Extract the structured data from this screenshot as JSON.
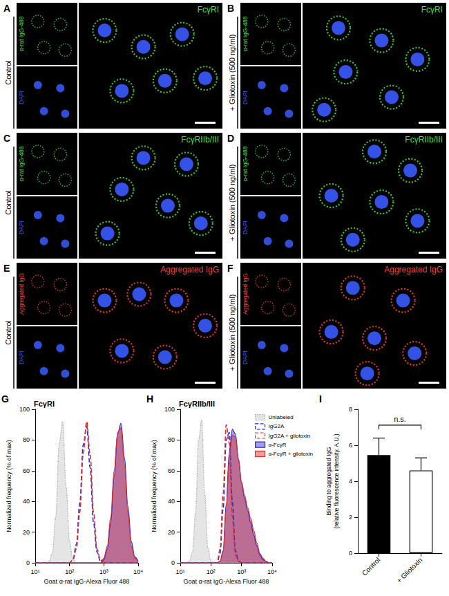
{
  "image_panels": [
    {
      "letter": "A",
      "condition": "Control",
      "stain": "FcγRI",
      "channel_label": "α-rat IgG-488",
      "nucleus_label": "DAPI",
      "color": "#3ee03e",
      "nucleus_color": "#3a5cff"
    },
    {
      "letter": "B",
      "condition": "+ Gliotoxin (500 ng/ml)",
      "stain": "FcγRI",
      "channel_label": "α-rat IgG-488",
      "nucleus_label": "DAPI",
      "color": "#3ee03e",
      "nucleus_color": "#3a5cff"
    },
    {
      "letter": "C",
      "condition": "Control",
      "stain": "FcγRIIb/III",
      "channel_label": "α-rat IgG-488",
      "nucleus_label": "DAPI",
      "color": "#3ee03e",
      "nucleus_color": "#3a5cff"
    },
    {
      "letter": "D",
      "condition": "+ Gliotoxin (500 ng/ml)",
      "stain": "FcγRIIb/III",
      "channel_label": "α-rat IgG-488",
      "nucleus_label": "DAPI",
      "color": "#3ee03e",
      "nucleus_color": "#3a5cff"
    },
    {
      "letter": "E",
      "condition": "Control",
      "stain": "Aggregated IgG",
      "channel_label": "Aggregated IgG",
      "nucleus_label": "DAPI",
      "color": "#ff3c3c",
      "nucleus_color": "#3a5cff"
    },
    {
      "letter": "F",
      "condition": "+ Gliotoxin (500 ng/ml)",
      "stain": "Aggregated IgG",
      "channel_label": "Aggregated IgG",
      "nucleus_label": "DAPI",
      "color": "#ff3c3c",
      "nucleus_color": "#3a5cff"
    }
  ],
  "chart_data": [
    {
      "type": "line",
      "panel": "G",
      "title": "FcγRI",
      "x_label": "Goat α-rat IgG-Alexa Fluor 488",
      "y_label": "Normalized frequency (% of max)",
      "x": [
        10,
        12.59,
        15.85,
        19.95,
        25.12,
        31.62,
        39.81,
        50.12,
        63.1,
        79.43,
        100,
        125.9,
        158.5,
        199.5,
        251.2,
        316.2,
        398.1,
        501.2,
        631,
        794.3,
        1000,
        1259,
        1585,
        1995,
        2512,
        3162,
        3981,
        5012,
        6310,
        7943,
        10000
      ],
      "series": [
        {
          "name": "Unlabeled",
          "type": "area",
          "color": "#a8a8a8",
          "line_style": "dotted",
          "values": [
            0,
            0,
            0,
            0,
            1,
            6,
            30,
            78,
            92,
            50,
            14,
            2,
            0,
            0,
            0,
            0,
            0,
            0,
            0,
            0,
            0,
            0,
            0,
            0,
            0,
            0,
            0,
            0,
            0,
            0,
            0
          ]
        },
        {
          "name": "IgG2A",
          "type": "line",
          "color": "#2a2ad0",
          "line_style": "dashed",
          "values": [
            0,
            0,
            0,
            0,
            0,
            0,
            0,
            0,
            0,
            0,
            0,
            2,
            12,
            39,
            77,
            89,
            62,
            26,
            7,
            1,
            0,
            0,
            0,
            0,
            0,
            0,
            0,
            0,
            0,
            0,
            0
          ]
        },
        {
          "name": "IgG2A + gliotoxin",
          "type": "line",
          "color": "#e0302a",
          "line_style": "dashed",
          "values": [
            0,
            0,
            0,
            0,
            0,
            0,
            0,
            0,
            0,
            0,
            0,
            2,
            9,
            33,
            71,
            92,
            71,
            33,
            9,
            2,
            0,
            0,
            0,
            0,
            0,
            0,
            0,
            0,
            0,
            0,
            0
          ]
        },
        {
          "name": "α-FcγR",
          "type": "area",
          "color": "#2a2ad0",
          "line_style": "solid",
          "values": [
            0,
            0,
            0,
            0,
            0,
            0,
            0,
            0,
            0,
            0,
            0,
            0,
            0,
            0,
            0,
            0,
            0,
            0,
            0,
            0,
            2,
            9,
            26,
            56,
            84,
            91,
            69,
            37,
            14,
            4,
            1
          ]
        },
        {
          "name": "α-FcγR + gliotoxin",
          "type": "area",
          "color": "#e0302a",
          "line_style": "solid",
          "values": [
            0,
            0,
            0,
            0,
            0,
            0,
            0,
            0,
            0,
            0,
            0,
            0,
            0,
            0,
            0,
            0,
            0,
            0,
            0,
            0,
            3,
            11,
            30,
            60,
            85,
            88,
            64,
            32,
            11,
            3,
            1
          ]
        }
      ],
      "xlim": [
        10,
        10000
      ],
      "xticks": [
        {
          "value": 10,
          "label": "10¹"
        },
        {
          "value": 100,
          "label": "10²"
        },
        {
          "value": 1000,
          "label": "10³"
        },
        {
          "value": 10000,
          "label": "10⁴"
        }
      ],
      "ylim": [
        0,
        100
      ],
      "yticks": [
        0,
        20,
        40,
        60,
        80,
        100
      ],
      "log": "x",
      "grid": false
    },
    {
      "type": "line",
      "panel": "H",
      "title": "FcγRIIb/III",
      "x_label": "Goat α-rat IgG-Alexa Fluor 488",
      "y_label": "Normalized frequency (% of max)",
      "x": [
        10,
        12.59,
        15.85,
        19.95,
        25.12,
        31.62,
        39.81,
        50.12,
        63.1,
        79.43,
        100,
        125.9,
        158.5,
        199.5,
        251.2,
        316.2,
        398.1,
        501.2,
        631,
        794.3,
        1000,
        1259,
        1585,
        1995,
        2512,
        3162,
        3981,
        5012,
        6310,
        7943,
        10000
      ],
      "series": [
        {
          "name": "Unlabeled",
          "type": "area",
          "color": "#a8a8a8",
          "line_style": "dotted",
          "values": [
            0,
            0,
            0,
            1,
            7,
            32,
            80,
            93,
            45,
            10,
            1,
            0,
            0,
            0,
            0,
            0,
            0,
            0,
            0,
            0,
            0,
            0,
            0,
            0,
            0,
            0,
            0,
            0,
            0,
            0,
            0
          ]
        },
        {
          "name": "IgG2A",
          "type": "line",
          "color": "#2a2ad0",
          "line_style": "dashed",
          "values": [
            0,
            0,
            0,
            0,
            0,
            0,
            0,
            0,
            0,
            0,
            0,
            0,
            0,
            6,
            35,
            80,
            85,
            40,
            8,
            1,
            0,
            0,
            0,
            0,
            0,
            0,
            0,
            0,
            0,
            0,
            0
          ]
        },
        {
          "name": "IgG2A + gliotoxin",
          "type": "line",
          "color": "#e0302a",
          "line_style": "dashed",
          "values": [
            0,
            0,
            0,
            0,
            0,
            0,
            0,
            0,
            0,
            0,
            0,
            0,
            0,
            9,
            45,
            90,
            78,
            30,
            5,
            1,
            0,
            0,
            0,
            0,
            0,
            0,
            0,
            0,
            0,
            0,
            0
          ]
        },
        {
          "name": "α-FcγR",
          "type": "area",
          "color": "#2a2ad0",
          "line_style": "solid",
          "values": [
            0,
            0,
            0,
            0,
            0,
            0,
            0,
            0,
            0,
            0,
            0,
            0,
            0,
            1,
            8,
            38,
            72,
            87,
            84,
            68,
            52,
            42,
            34,
            26,
            18,
            11,
            5,
            2,
            1,
            0,
            0
          ]
        },
        {
          "name": "α-FcγR + gliotoxin",
          "type": "area",
          "color": "#e0302a",
          "line_style": "solid",
          "values": [
            0,
            0,
            0,
            0,
            0,
            0,
            0,
            0,
            0,
            0,
            0,
            0,
            0,
            1,
            7,
            34,
            68,
            83,
            82,
            67,
            53,
            44,
            36,
            29,
            21,
            13,
            6,
            3,
            1,
            0,
            0
          ]
        }
      ],
      "xlim": [
        10,
        10000
      ],
      "xticks": [
        {
          "value": 10,
          "label": "10¹"
        },
        {
          "value": 100,
          "label": "10²"
        },
        {
          "value": 1000,
          "label": "10³"
        },
        {
          "value": 10000,
          "label": "10⁴"
        }
      ],
      "ylim": [
        0,
        100
      ],
      "yticks": [
        0,
        20,
        40,
        60,
        80,
        100
      ],
      "log": "x",
      "grid": false,
      "legend": "top-right"
    },
    {
      "type": "bar",
      "panel": "I",
      "y_label": "Binding to aggregated IgG (relative fluorescence intensity, A.U.)",
      "categories": [
        "Control",
        "+ Gliotoxin"
      ],
      "values": [
        5.45,
        4.6
      ],
      "errors": [
        0.95,
        0.7
      ],
      "colors": [
        "#000000",
        "#ffffff"
      ],
      "ylim": [
        0,
        8
      ],
      "yticks": [
        0,
        2,
        4,
        6,
        8
      ],
      "annotation": "n.s.",
      "grid": false
    }
  ]
}
